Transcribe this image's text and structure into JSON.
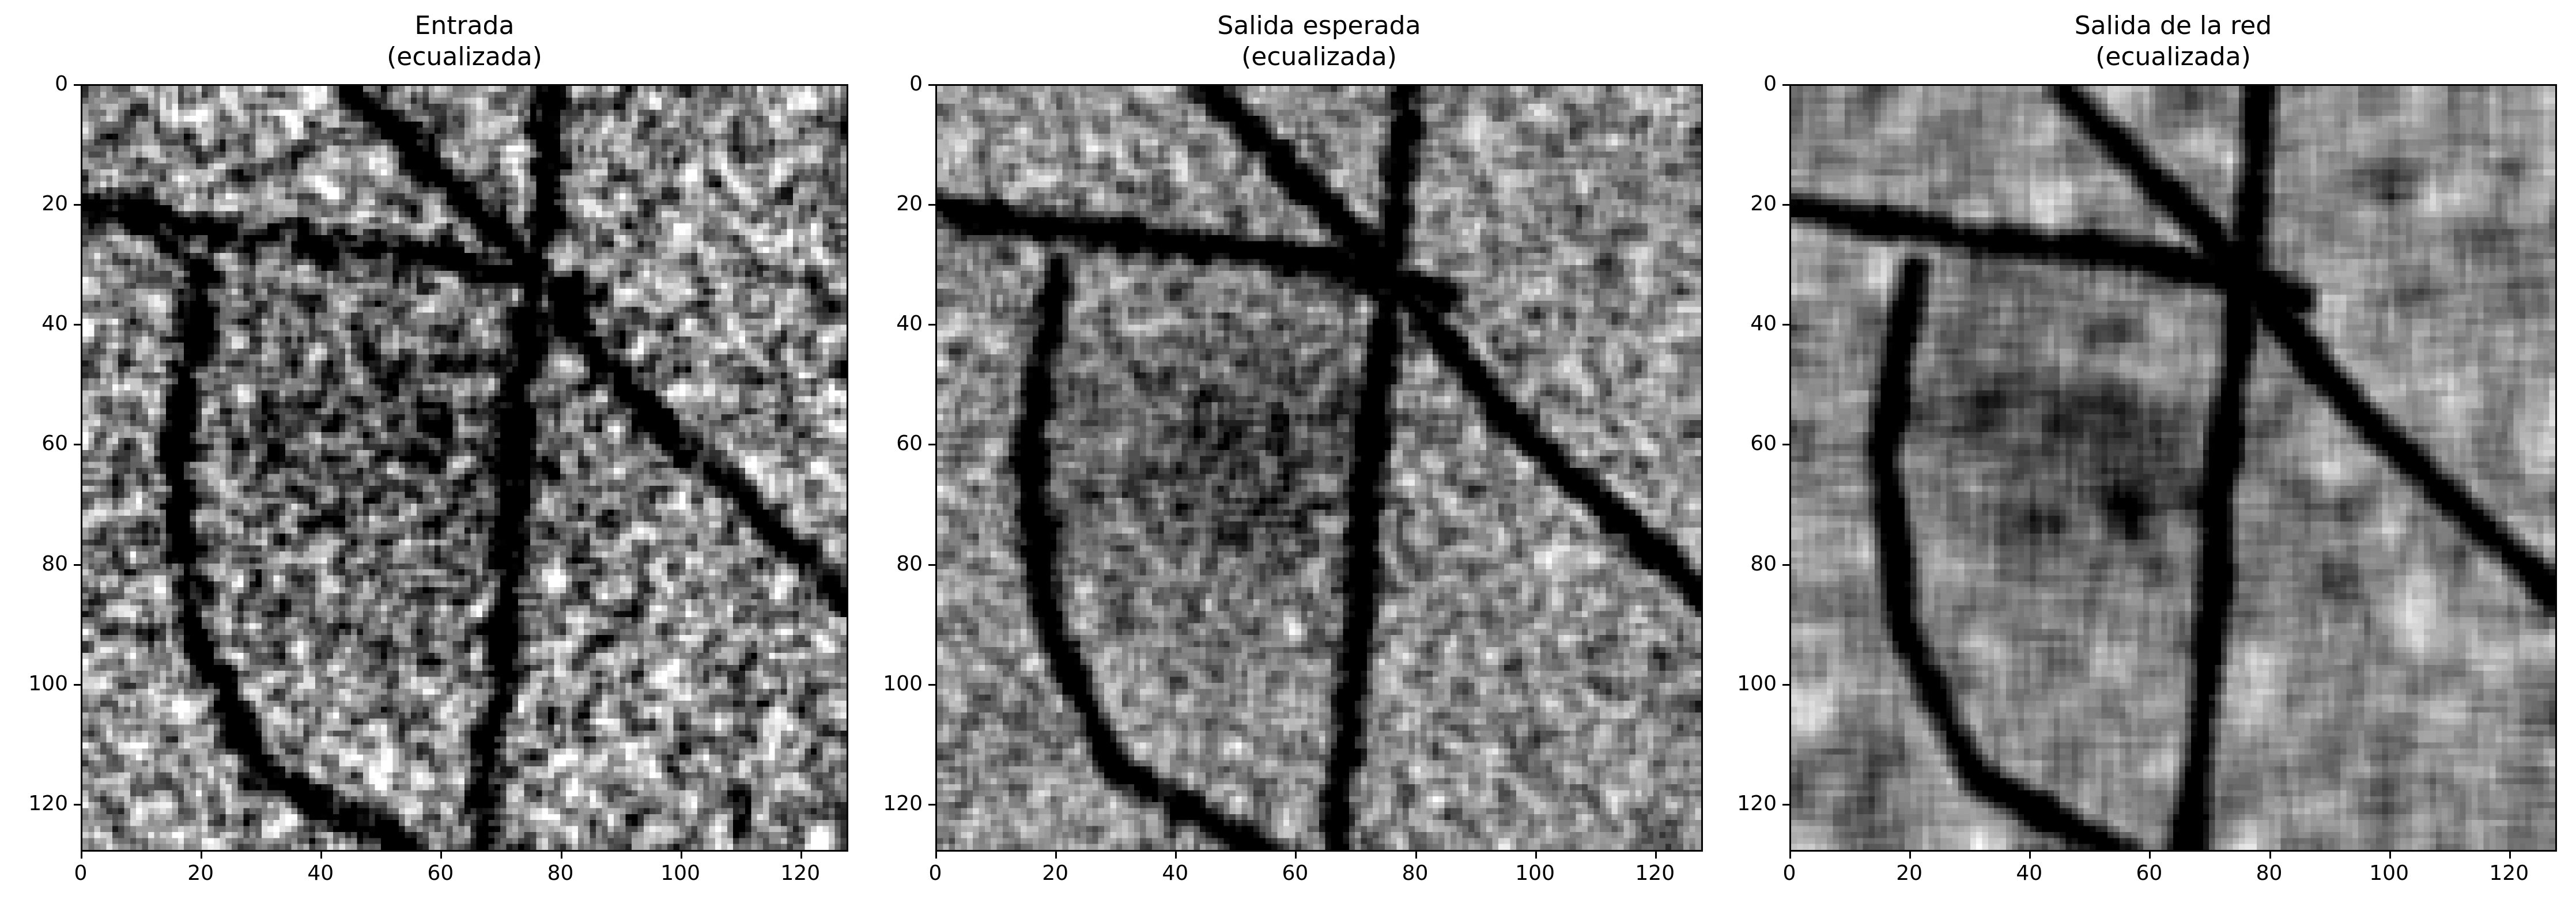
{
  "figure": {
    "panels": [
      {
        "title": "Entrada\n(ecualizada)",
        "image_name": "input-equalized-image",
        "style": "raw"
      },
      {
        "title": "Salida esperada\n(ecualizada)",
        "image_name": "expected-output-equalized-image",
        "style": "clean"
      },
      {
        "title": "Salida de la red\n(ecualizada)",
        "image_name": "network-output-equalized-image",
        "style": "smooth"
      }
    ],
    "yticks": [
      "0",
      "20",
      "40",
      "60",
      "80",
      "100",
      "120"
    ],
    "xticks": [
      "0",
      "20",
      "40",
      "60",
      "80",
      "100",
      "120"
    ],
    "pixel_extent": 128,
    "colormap": "gray"
  }
}
